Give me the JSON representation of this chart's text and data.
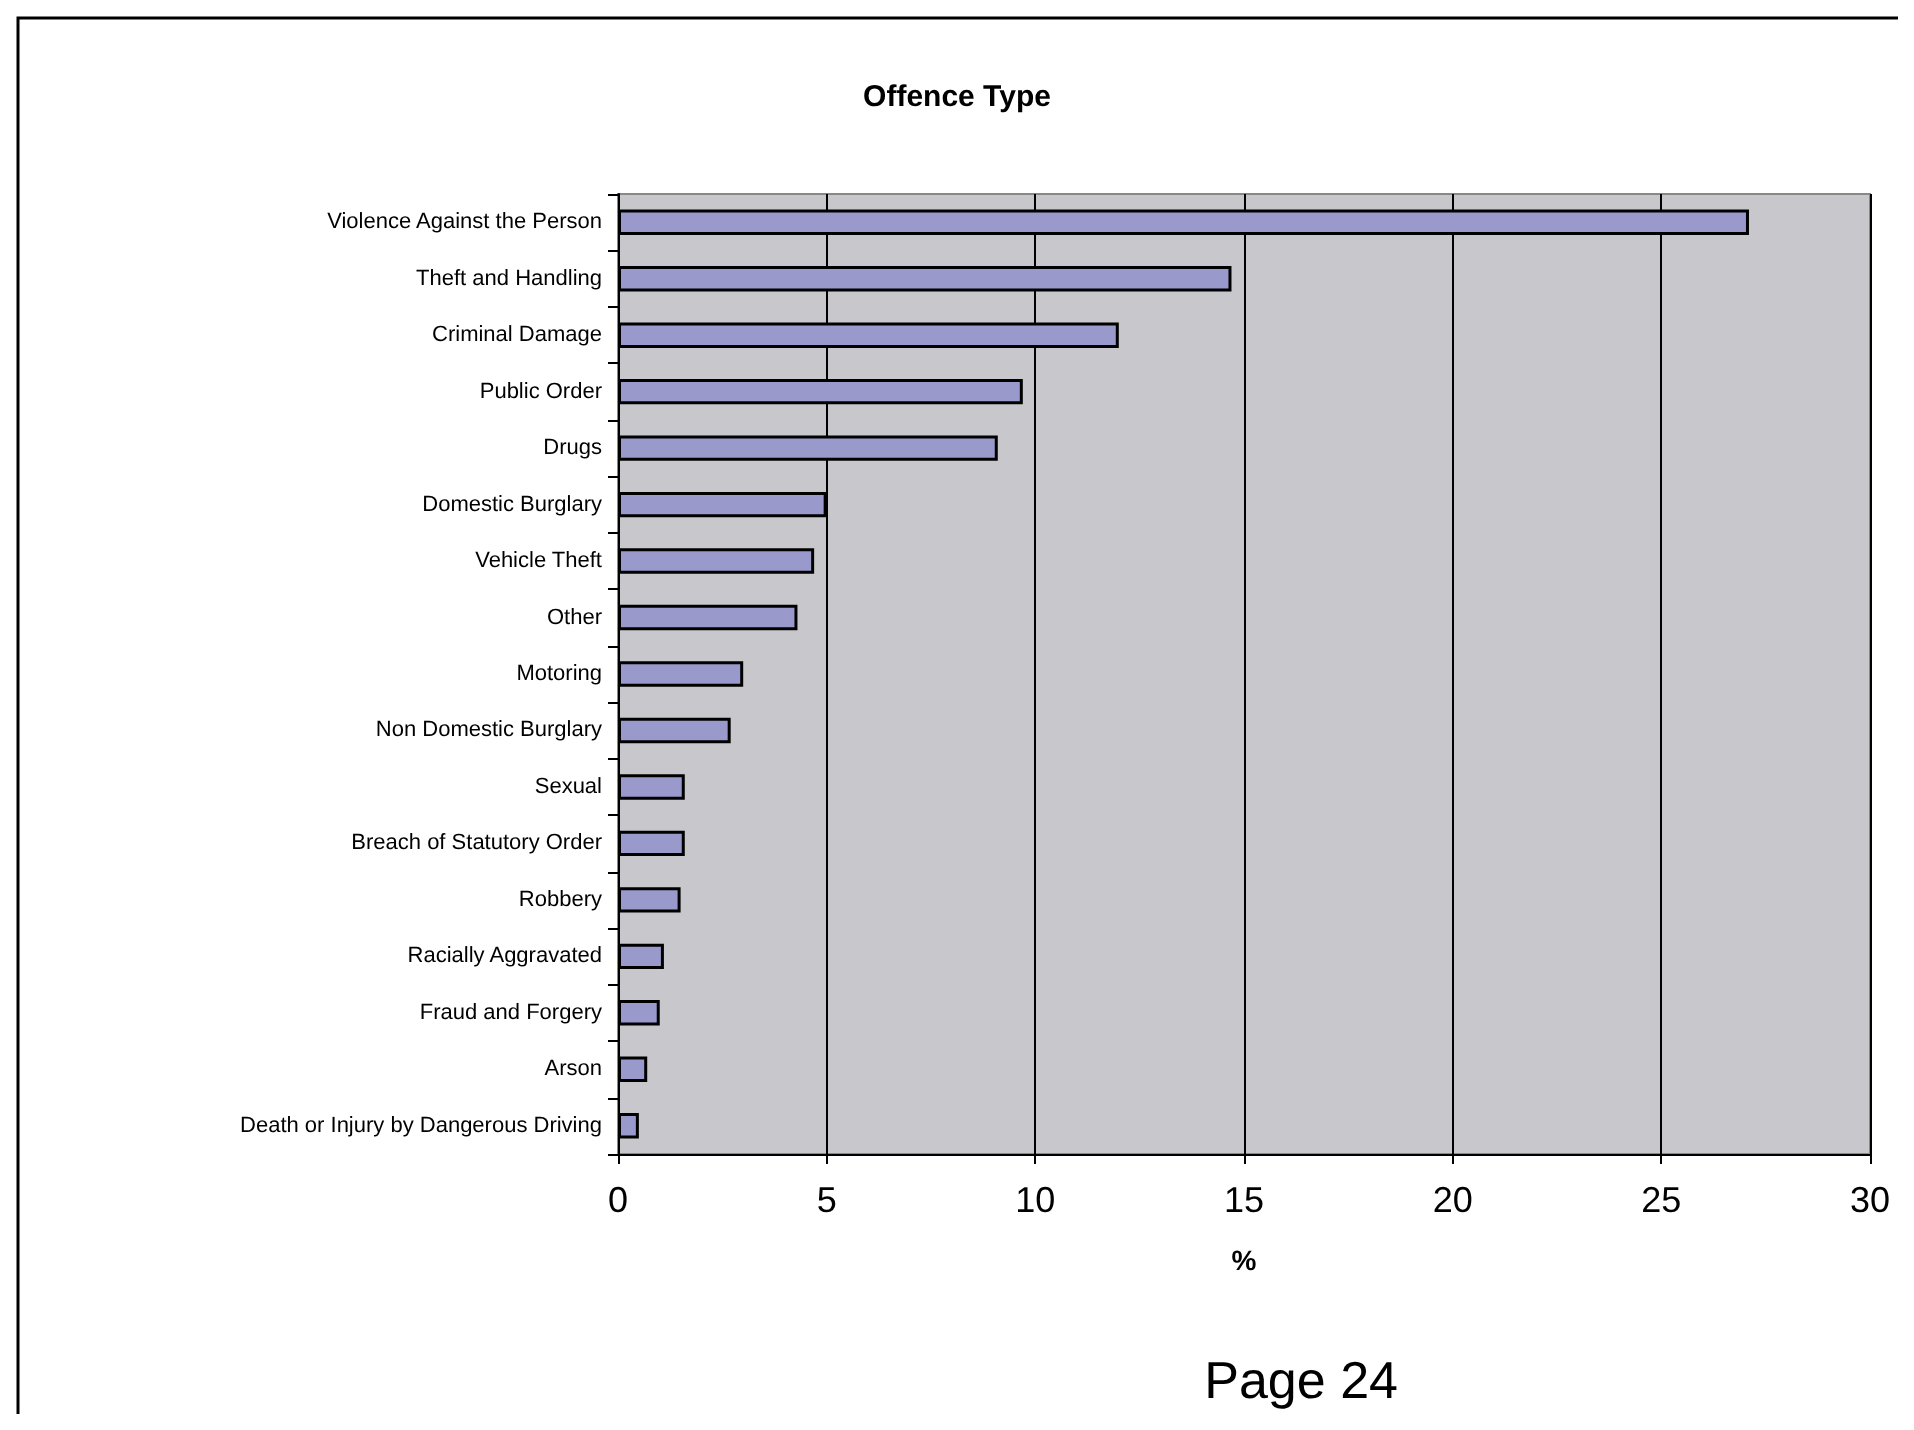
{
  "chart_data": {
    "type": "bar",
    "orientation": "horizontal",
    "title": "Offence Type",
    "xlabel": "%",
    "categories": [
      "Violence Against the Person",
      "Theft and Handling",
      "Criminal Damage",
      "Public Order",
      "Drugs",
      "Domestic Burglary",
      "Vehicle Theft",
      "Other",
      "Motoring",
      "Non Domestic Burglary",
      "Sexual",
      "Breach of Statutory Order",
      "Robbery",
      "Racially Aggravated",
      "Fraud and Forgery",
      "Arson",
      "Death or Injury by Dangerous Driving"
    ],
    "values": [
      27.1,
      14.7,
      12.0,
      9.7,
      9.1,
      5.0,
      4.7,
      4.3,
      3.0,
      2.7,
      1.6,
      1.6,
      1.5,
      1.1,
      1.0,
      0.7,
      0.5
    ],
    "color": "#9999cc",
    "xlim": [
      0,
      30
    ],
    "xticks": [
      0,
      5,
      10,
      15,
      20,
      25,
      30
    ],
    "grid": "x",
    "annotations": [
      "Page 24"
    ]
  }
}
